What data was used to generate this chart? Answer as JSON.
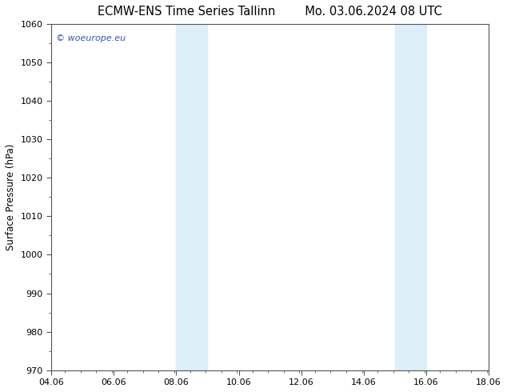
{
  "title": "ECMW-ENS Time Series Tallinn        Mo. 03.06.2024 08 UTC",
  "ylabel": "Surface Pressure (hPa)",
  "ylim": [
    970,
    1060
  ],
  "yticks": [
    970,
    980,
    990,
    1000,
    1010,
    1020,
    1030,
    1040,
    1050,
    1060
  ],
  "xlim_start": 4.06,
  "xlim_end": 18.06,
  "xticks": [
    4.06,
    6.06,
    8.06,
    10.06,
    12.06,
    14.06,
    16.06,
    18.06
  ],
  "xticklabels": [
    "04.06",
    "06.06",
    "08.06",
    "10.06",
    "12.06",
    "14.06",
    "16.06",
    "18.06"
  ],
  "bg_color": "#ffffff",
  "plot_bg_color": "#ffffff",
  "shaded_bands": [
    {
      "x_start": 8.06,
      "x_end": 9.06
    },
    {
      "x_start": 15.06,
      "x_end": 16.06
    }
  ],
  "shaded_color": "#ddeef8",
  "watermark_text": "© woeurope.eu",
  "watermark_color": "#3355bb",
  "title_fontsize": 10.5,
  "label_fontsize": 8.5,
  "tick_fontsize": 8.0,
  "spine_color": "#555555"
}
